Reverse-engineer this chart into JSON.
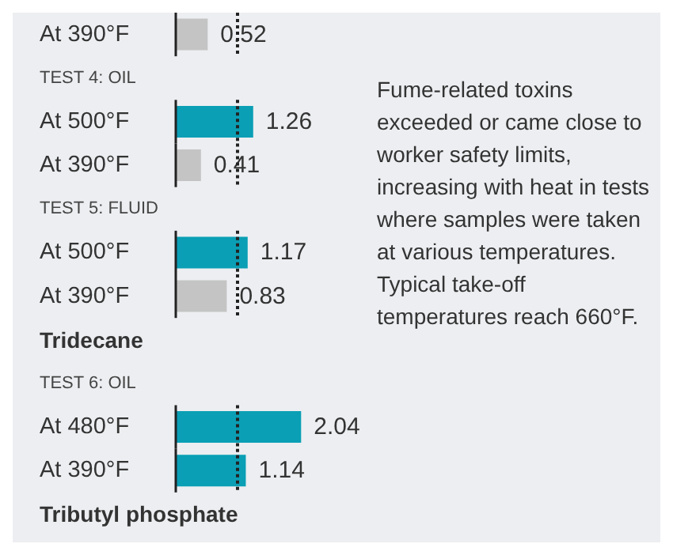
{
  "chart_data": {
    "type": "bar",
    "orientation": "horizontal",
    "categories": [
      "At 390°F",
      "TEST 4: OIL",
      "At 500°F",
      "At 390°F",
      "TEST 5: FLUID",
      "At 500°F",
      "At 390°F",
      "Tridecane",
      "TEST 6: OIL",
      "At 480°F",
      "At 390°F",
      "Tributyl phosphate"
    ],
    "values": [
      0.52,
      null,
      1.26,
      0.41,
      null,
      1.17,
      0.83,
      null,
      null,
      2.04,
      1.14,
      null
    ],
    "colors": [
      "#c4c4c4",
      null,
      "#0a9fb5",
      "#c4c4c4",
      null,
      "#0a9fb5",
      "#c4c4c4",
      null,
      null,
      "#0a9fb5",
      "#0a9fb5",
      null
    ],
    "data_labels": true,
    "tick_labels": false,
    "ref_lines": [
      {
        "axis": "x",
        "value": 1,
        "color": "#222222",
        "line_style": "dotted"
      }
    ],
    "annotations": [
      "Fume-related toxins exceeded or came close to worker safety limits, increasing with heat in tests where samples were taken at various temperatures. Typical take-off temperatures reach 660°F."
    ]
  }
}
